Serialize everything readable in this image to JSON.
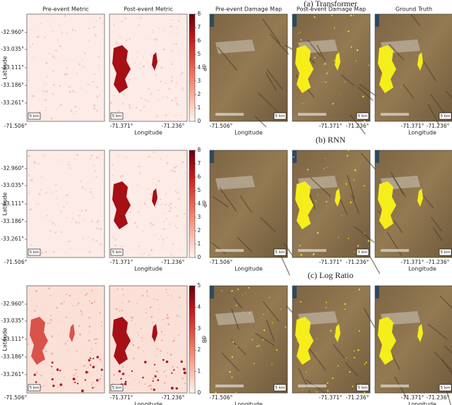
{
  "figure": {
    "left_titles": [
      "Pre-event Metric",
      "Post-event Metric"
    ],
    "right_titles": [
      "Pre-event Damage Map",
      "Post-event Damage Map",
      "Ground Truth"
    ],
    "x_ticks": [
      "-71.506°",
      "-71.371°",
      "-71.236°"
    ],
    "x_label": "Longitude",
    "y_ticks": [
      "-32.960°",
      "-33.035°",
      "-33.111°",
      "-33.186°",
      "-33.261°"
    ],
    "y_label": "Latitude",
    "scale_bar": "5 km",
    "rows": [
      {
        "caption": "(a) Transformer",
        "colorbar_label": "dP",
        "colorbar_ticks": [
          0,
          1,
          2,
          3,
          4,
          5,
          6,
          7,
          8
        ]
      },
      {
        "caption": "(b) RNN",
        "colorbar_label": "dP",
        "colorbar_ticks": [
          0,
          1,
          2,
          3,
          4,
          5,
          6,
          7,
          8
        ]
      },
      {
        "caption": "(c) Log Ratio",
        "colorbar_label": "dB",
        "colorbar_ticks": [
          0,
          1,
          2,
          3,
          4,
          5
        ]
      }
    ]
  }
}
